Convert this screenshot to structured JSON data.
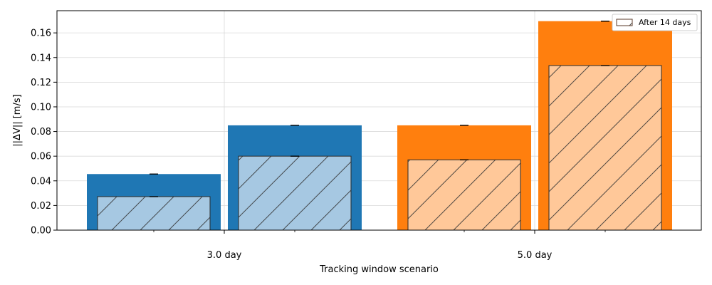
{
  "chart_data": {
    "type": "bar",
    "title": "",
    "xlabel": "Tracking window scenario",
    "ylabel": "||ΔV|| [m/s]",
    "ylim": [
      0,
      0.178
    ],
    "yticks": [
      0.0,
      0.02,
      0.04,
      0.06,
      0.08,
      0.1,
      0.12,
      0.14,
      0.16
    ],
    "ytick_labels": [
      "0.00",
      "0.02",
      "0.04",
      "0.06",
      "0.08",
      "0.10",
      "0.12",
      "0.14",
      "0.16"
    ],
    "grid": true,
    "groups": [
      {
        "label": "3.0 day",
        "color": "#1f77b4",
        "inner_color": "#a6c8e2",
        "bars": [
          {
            "total": 0.0455,
            "after_14_days": 0.0272
          },
          {
            "total": 0.085,
            "after_14_days": 0.06
          }
        ]
      },
      {
        "label": "5.0 day",
        "color": "#ff7f0e",
        "inner_color": "#ffc899",
        "bars": [
          {
            "total": 0.085,
            "after_14_days": 0.057
          },
          {
            "total": 0.1695,
            "after_14_days": 0.1335
          }
        ]
      }
    ],
    "legend": {
      "placement": "top-right",
      "entries": [
        "After 14 days"
      ]
    }
  }
}
